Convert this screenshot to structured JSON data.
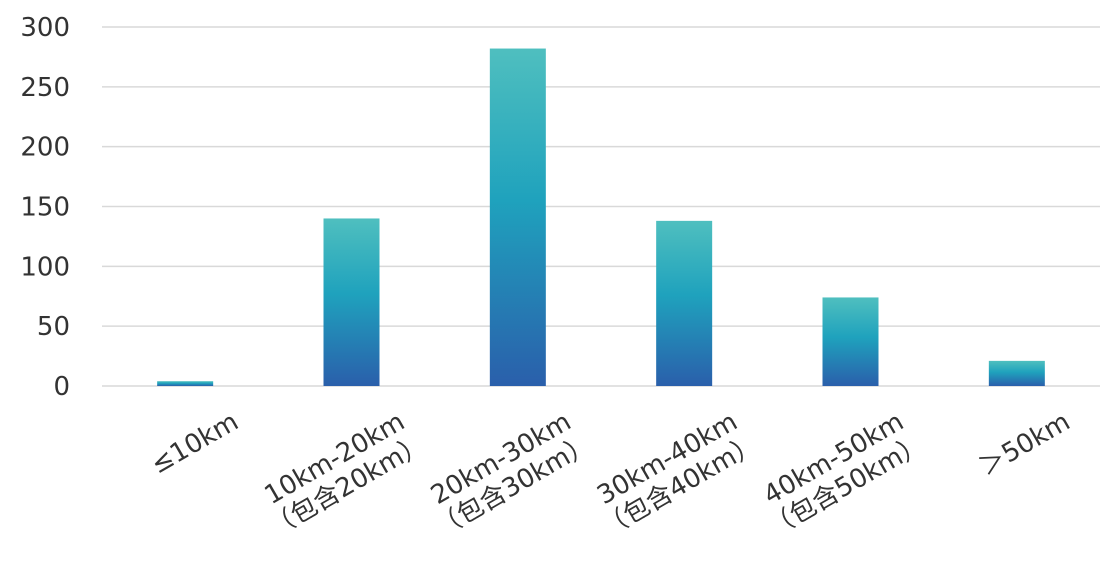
{
  "chart_data": {
    "type": "bar",
    "title": "",
    "xlabel": "",
    "ylabel": "",
    "categories": [
      [
        "≤10km"
      ],
      [
        "10km-20km",
        "（包含20km）"
      ],
      [
        "20km-30km",
        "（包含30km）"
      ],
      [
        "30km-40km",
        "（包含40km）"
      ],
      [
        "40km-50km",
        "（包含50km）"
      ],
      [
        "＞50km"
      ]
    ],
    "values": [
      4,
      140,
      282,
      138,
      74,
      21
    ],
    "ylim": [
      0,
      300
    ],
    "yticks": [
      0,
      50,
      100,
      150,
      200,
      250,
      300
    ],
    "grid": true,
    "legend": "none",
    "colors": {
      "bar_top": "#4fbfbf",
      "bar_mid": "#1fa2bd",
      "bar_bottom": "#2a5fab",
      "grid": "#d9d9d9",
      "text": "#333333"
    }
  }
}
